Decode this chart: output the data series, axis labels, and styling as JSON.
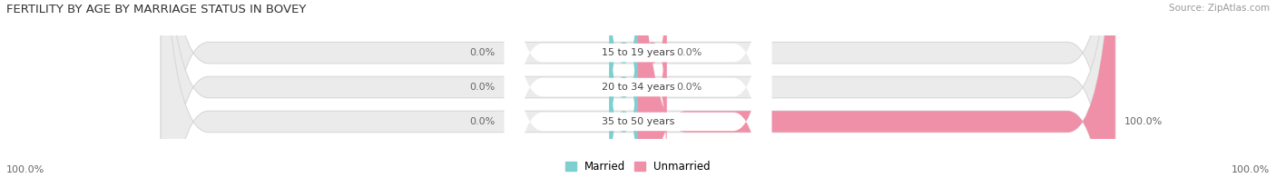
{
  "title": "FERTILITY BY AGE BY MARRIAGE STATUS IN BOVEY",
  "source": "Source: ZipAtlas.com",
  "categories": [
    "15 to 19 years",
    "20 to 34 years",
    "35 to 50 years"
  ],
  "married_values": [
    0.0,
    0.0,
    0.0
  ],
  "unmarried_values": [
    0.0,
    0.0,
    100.0
  ],
  "married_color": "#7ecfcf",
  "unmarried_color": "#f090a8",
  "bar_bg_color": "#ebebeb",
  "bar_bg_edge_color": "#d8d8d8",
  "label_pill_color": "#ffffff",
  "title_fontsize": 9.5,
  "label_fontsize": 8,
  "source_fontsize": 7.5,
  "legend_fontsize": 8.5,
  "left_axis_label": "100.0%",
  "right_axis_label": "100.0%"
}
